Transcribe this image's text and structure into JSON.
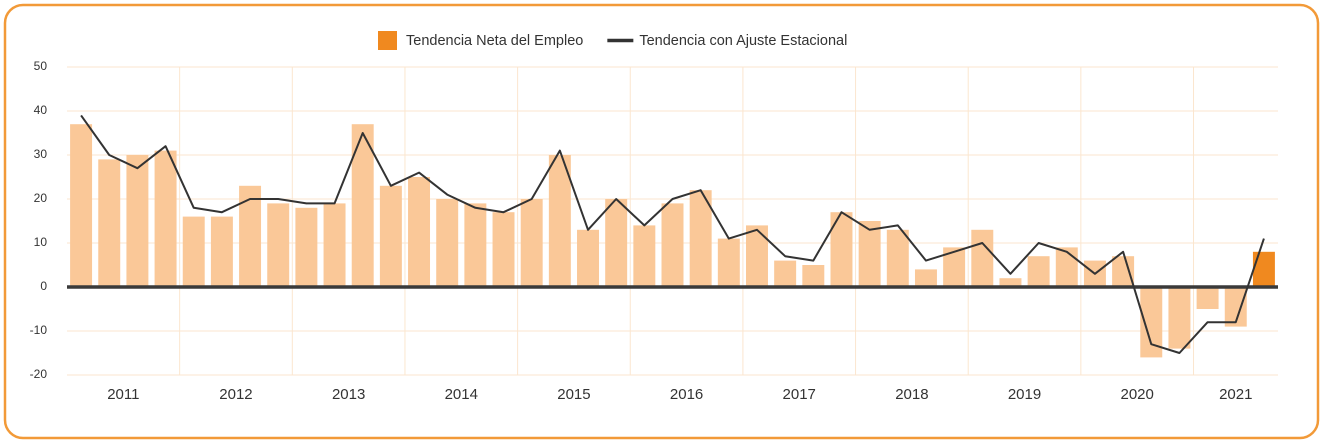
{
  "chart_data": {
    "type": "bar_line",
    "categories": [
      "2011",
      null,
      null,
      null,
      "2012",
      null,
      null,
      null,
      "2013",
      null,
      null,
      null,
      "2014",
      null,
      null,
      null,
      "2015",
      null,
      null,
      null,
      "2016",
      null,
      null,
      null,
      "2017",
      null,
      null,
      null,
      "2018",
      null,
      null,
      null,
      "2019",
      null,
      null,
      null,
      "2020",
      null,
      null,
      null,
      "2021",
      null,
      null
    ],
    "series": [
      {
        "name": "Tendencia Neta del Empleo",
        "type": "bar",
        "color": "#f0891f",
        "faded_color": "#fac898",
        "values": [
          37,
          29,
          30,
          31,
          16,
          16,
          23,
          19,
          18,
          19,
          37,
          23,
          25,
          20,
          19,
          17,
          20,
          30,
          13,
          20,
          14,
          19,
          22,
          11,
          14,
          6,
          5,
          17,
          15,
          13,
          4,
          9,
          13,
          2,
          7,
          9,
          6,
          7,
          -16,
          -14,
          -5,
          -9,
          8
        ]
      },
      {
        "name": "Tendencia con Ajuste Estacional",
        "type": "line",
        "color": "#333333",
        "values": [
          39,
          30,
          27,
          32,
          18,
          17,
          20,
          20,
          19,
          19,
          35,
          23,
          26,
          21,
          18,
          17,
          20,
          31,
          13,
          20,
          14,
          20,
          22,
          11,
          13,
          7,
          6,
          17,
          13,
          14,
          6,
          8,
          10,
          3,
          10,
          8,
          3,
          8,
          -13,
          -15,
          -8,
          -8,
          11
        ]
      }
    ],
    "ylim": [
      -20,
      50
    ],
    "yticks": [
      -20,
      -10,
      0,
      10,
      20,
      30,
      40,
      50
    ],
    "grid": true,
    "legend": "top"
  }
}
